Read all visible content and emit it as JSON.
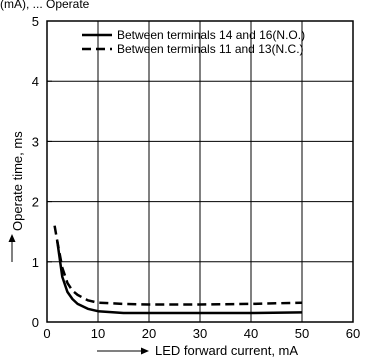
{
  "header": {
    "caption": "(mA), ... Operate"
  },
  "chart_data": {
    "type": "line",
    "title": "",
    "xlabel": "LED forward current, mA",
    "ylabel": "Operate time, ms",
    "xlim": [
      0,
      60
    ],
    "ylim": [
      0,
      5
    ],
    "x_ticks": [
      0,
      10,
      20,
      30,
      40,
      50,
      60
    ],
    "y_ticks": [
      0,
      1,
      2,
      3,
      4,
      5
    ],
    "grid": true,
    "legend_position": "top-right",
    "series": [
      {
        "name": "Between terminals 14 and 16(N.O.)",
        "style": "solid",
        "color": "#000000",
        "x": [
          2,
          3,
          4,
          5,
          6,
          8,
          10,
          15,
          20,
          30,
          40,
          50
        ],
        "y": [
          1.35,
          0.75,
          0.5,
          0.38,
          0.3,
          0.22,
          0.18,
          0.15,
          0.15,
          0.15,
          0.15,
          0.16
        ]
      },
      {
        "name": "Between terminals 11 and 13(N.C.)",
        "style": "dashed",
        "color": "#000000",
        "x": [
          1.5,
          2,
          3,
          4,
          5,
          6,
          8,
          10,
          15,
          20,
          30,
          40,
          50
        ],
        "y": [
          1.6,
          1.35,
          0.9,
          0.65,
          0.52,
          0.45,
          0.36,
          0.32,
          0.3,
          0.29,
          0.29,
          0.3,
          0.32
        ]
      }
    ]
  }
}
